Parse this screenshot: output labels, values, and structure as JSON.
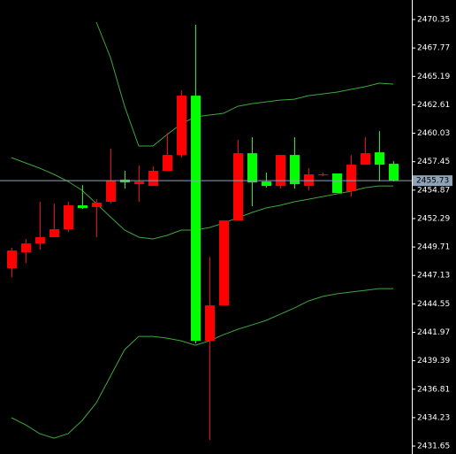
{
  "chart_data": {
    "type": "candlestick",
    "up_color": "#ff0000",
    "down_color": "#00ff00",
    "band_color": "#3fa63f",
    "ylim": [
      2430.93,
      2472.12
    ],
    "yticks": [
      2470.35,
      2467.77,
      2465.19,
      2462.61,
      2460.03,
      2457.45,
      2454.87,
      2452.29,
      2449.71,
      2447.13,
      2444.55,
      2441.97,
      2439.39,
      2436.81,
      2434.23,
      2431.65
    ],
    "current_price": 2455.73,
    "current_price_color": "#8fa3b8",
    "candles": [
      {
        "open": 2447.79,
        "high": 2449.63,
        "low": 2446.98,
        "close": 2449.39
      },
      {
        "open": 2449.23,
        "high": 2450.43,
        "low": 2448.26,
        "close": 2450.03
      },
      {
        "open": 2450.03,
        "high": 2453.81,
        "low": 2449.47,
        "close": 2450.6
      },
      {
        "open": 2450.6,
        "high": 2453.65,
        "low": 2450.6,
        "close": 2451.32
      },
      {
        "open": 2451.32,
        "high": 2453.81,
        "low": 2451.08,
        "close": 2453.49
      },
      {
        "open": 2453.49,
        "high": 2455.33,
        "low": 2453.17,
        "close": 2453.25
      },
      {
        "open": 2453.33,
        "high": 2454.05,
        "low": 2450.6,
        "close": 2453.73
      },
      {
        "open": 2453.81,
        "high": 2458.62,
        "low": 2453.65,
        "close": 2455.74
      },
      {
        "open": 2455.82,
        "high": 2456.62,
        "low": 2455.01,
        "close": 2455.57
      },
      {
        "open": 2455.41,
        "high": 2457.1,
        "low": 2453.81,
        "close": 2455.65
      },
      {
        "open": 2455.25,
        "high": 2457.02,
        "low": 2455.25,
        "close": 2456.62
      },
      {
        "open": 2456.62,
        "high": 2460.07,
        "low": 2456.62,
        "close": 2458.06
      },
      {
        "open": 2458.06,
        "high": 2463.92,
        "low": 2457.82,
        "close": 2463.44
      },
      {
        "open": 2463.44,
        "high": 2469.87,
        "low": 2440.96,
        "close": 2441.2
      },
      {
        "open": 2441.2,
        "high": 2448.83,
        "low": 2432.21,
        "close": 2444.41
      },
      {
        "open": 2444.41,
        "high": 2452.12,
        "low": 2444.41,
        "close": 2452.12
      },
      {
        "open": 2452.12,
        "high": 2459.43,
        "low": 2452.12,
        "close": 2458.22
      },
      {
        "open": 2458.22,
        "high": 2459.67,
        "low": 2453.41,
        "close": 2455.57
      },
      {
        "open": 2455.65,
        "high": 2456.46,
        "low": 2455.09,
        "close": 2455.25
      },
      {
        "open": 2455.25,
        "high": 2458.06,
        "low": 2455.01,
        "close": 2458.06
      },
      {
        "open": 2458.06,
        "high": 2459.67,
        "low": 2455.01,
        "close": 2455.41
      },
      {
        "open": 2455.25,
        "high": 2456.86,
        "low": 2454.85,
        "close": 2456.3
      },
      {
        "open": 2456.3,
        "high": 2456.46,
        "low": 2456.14,
        "close": 2456.3
      },
      {
        "open": 2456.38,
        "high": 2456.38,
        "low": 2454.61,
        "close": 2454.61
      },
      {
        "open": 2454.77,
        "high": 2458.06,
        "low": 2454.29,
        "close": 2457.18
      },
      {
        "open": 2457.18,
        "high": 2459.67,
        "low": 2457.18,
        "close": 2458.22
      },
      {
        "open": 2458.3,
        "high": 2460.23,
        "low": 2455.66,
        "close": 2457.18
      },
      {
        "open": 2457.26,
        "high": 2457.5,
        "low": 2455.66,
        "close": 2455.73
      }
    ],
    "bands": [
      {
        "values": [
          null,
          null,
          null,
          null,
          null,
          null,
          2470.11,
          2466.9,
          2462.48,
          2458.87,
          2458.87,
          2459.91,
          2460.87,
          2461.52,
          2461.68,
          2461.84,
          2462.48,
          2462.72,
          2462.88,
          2463.04,
          2463.12,
          2463.44,
          2463.6,
          2463.76,
          2464.01,
          2464.25,
          2464.57,
          2464.49
        ]
      },
      {
        "values": [
          2457.82,
          2457.34,
          2456.86,
          2456.3,
          2455.66,
          2454.85,
          2453.65,
          2452.44,
          2451.24,
          2450.6,
          2450.44,
          2450.76,
          2451.24,
          2451.24,
          2451.48,
          2451.88,
          2452.36,
          2452.84,
          2453.25,
          2453.49,
          2453.81,
          2454.05,
          2454.29,
          2454.53,
          2454.77,
          2455.09,
          2455.25,
          2455.25
        ]
      },
      {
        "values": [
          2434.22,
          2433.57,
          2432.77,
          2432.37,
          2432.77,
          2433.97,
          2435.58,
          2437.99,
          2440.4,
          2441.6,
          2441.6,
          2441.44,
          2441.2,
          2440.8,
          2441.2,
          2441.76,
          2442.24,
          2442.64,
          2443.05,
          2443.61,
          2444.17,
          2444.81,
          2445.22,
          2445.46,
          2445.62,
          2445.78,
          2445.94,
          2445.94
        ]
      }
    ]
  }
}
